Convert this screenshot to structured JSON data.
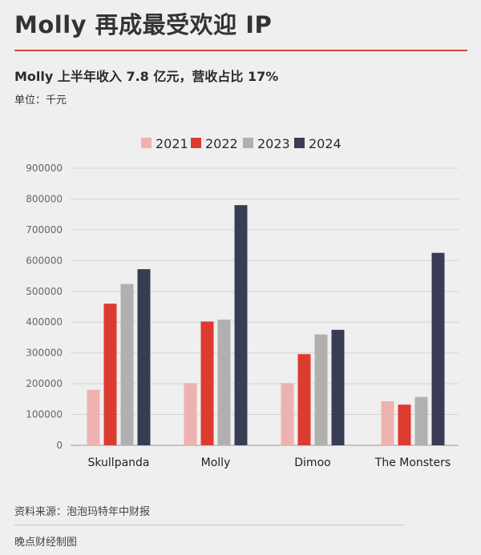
{
  "header": {
    "title": "Molly 再成最受欢迎 IP",
    "subtitle": "Molly 上半年收入 7.8 亿元，营收占比 17%",
    "unit": "单位：千元"
  },
  "footer": {
    "source": "资料来源：泡泡玛特年中财报",
    "credit": "晚点财经制图"
  },
  "colors": {
    "accent": "#d9463b",
    "s2021": "#eeb2b0",
    "s2022": "#dc3b2f",
    "s2023": "#b0b0b0",
    "s2024": "#383c54"
  },
  "chart_data": {
    "type": "bar",
    "categories": [
      "Skullpanda",
      "Molly",
      "Dimoo",
      "The Monsters"
    ],
    "series": [
      {
        "name": "2021",
        "values": [
          180000,
          202000,
          202000,
          143000
        ]
      },
      {
        "name": "2022",
        "values": [
          460000,
          402000,
          296000,
          132000
        ]
      },
      {
        "name": "2023",
        "values": [
          524000,
          408000,
          360000,
          157000
        ]
      },
      {
        "name": "2024",
        "values": [
          572000,
          780000,
          375000,
          625000
        ]
      }
    ],
    "yticks": [
      0,
      100000,
      200000,
      300000,
      400000,
      500000,
      600000,
      700000,
      800000,
      900000
    ],
    "ylim": [
      0,
      900000
    ],
    "legend_position": "top",
    "grid": true
  }
}
